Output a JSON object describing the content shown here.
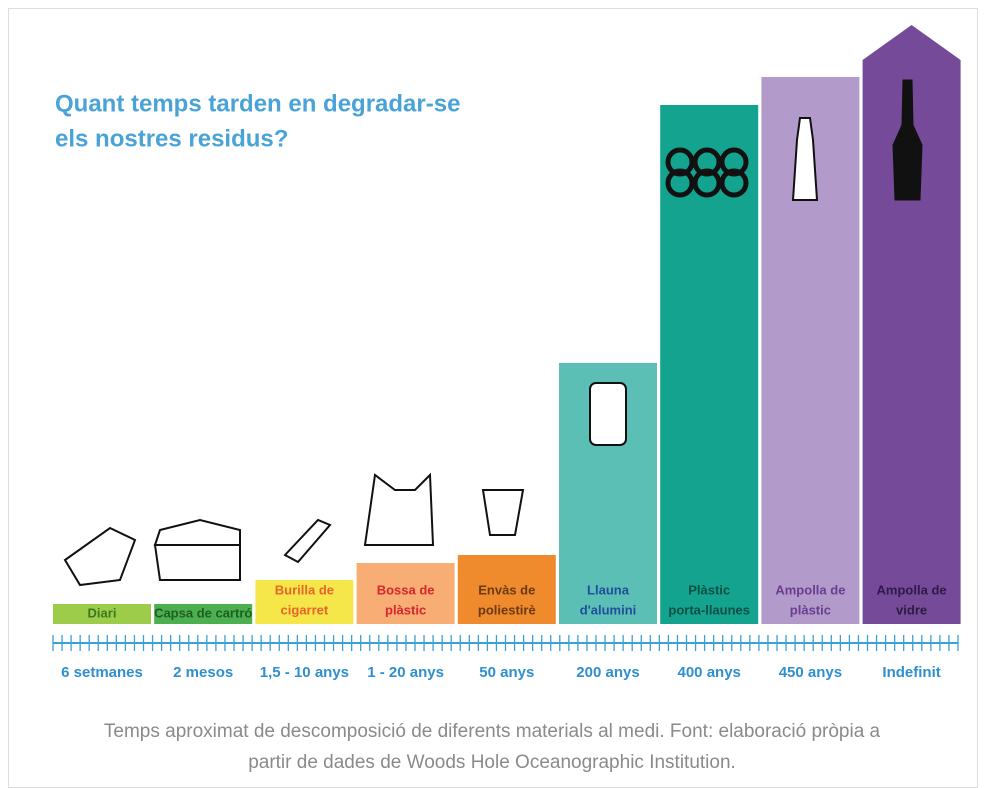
{
  "title": [
    "Quant temps tarden en degradar-se",
    "els nostres residus?"
  ],
  "items": [
    {
      "label": [
        "Diari"
      ],
      "time": "6 setmanes",
      "color": "#9ccc4a",
      "text_color": "#3a7a1e"
    },
    {
      "label": [
        "Capsa de cartró"
      ],
      "time": "2 mesos",
      "color": "#4caf50",
      "text_color": "#1e5e22"
    },
    {
      "label": [
        "Burilla de",
        "cigarret"
      ],
      "time": "1,5 - 10 anys",
      "color": "#f5e64a",
      "text_color": "#e8642a"
    },
    {
      "label": [
        "Bossa de",
        "plàstic"
      ],
      "time": "1 - 20 anys",
      "color": "#f7ad73",
      "text_color": "#d6262e"
    },
    {
      "label": [
        "Envàs de",
        "poliestirè"
      ],
      "time": "50 anys",
      "color": "#ef8a2d",
      "text_color": "#6b3a10"
    },
    {
      "label": [
        "Llauna",
        "d'alumini"
      ],
      "time": "200 anys",
      "color": "#5cbfb6",
      "text_color": "#1e4f9a"
    },
    {
      "label": [
        "Plàstic",
        "porta-llaunes"
      ],
      "time": "400 anys",
      "color": "#13a38f",
      "text_color": "#0d4f45"
    },
    {
      "label": [
        "Ampolla de",
        "plàstic"
      ],
      "time": "450 anys",
      "color": "#b29bcb",
      "text_color": "#6a3d8f"
    },
    {
      "label": [
        "Ampolla de",
        "vidre"
      ],
      "time": "Indefinit",
      "color": "#754a98",
      "text_color": "#2d1a45"
    }
  ],
  "caption": [
    "Temps aproximat de descomposició de diferents materials al medi. Font: elaboració pròpia a",
    "partir de dades de Woods Hole Oceanographic Institution."
  ]
}
